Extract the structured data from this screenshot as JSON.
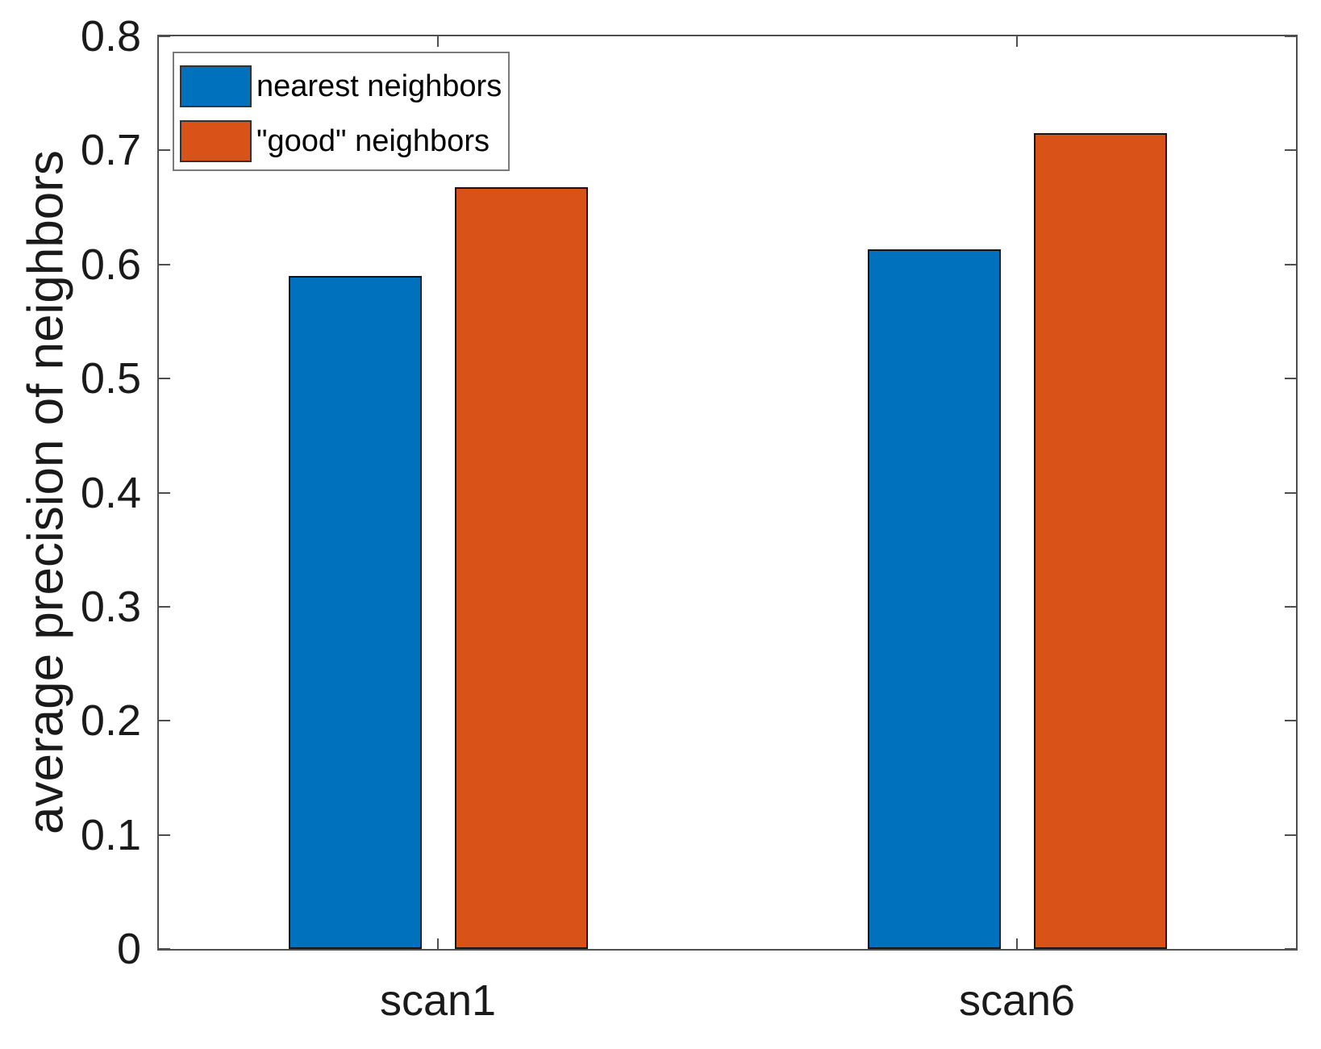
{
  "chart_data": {
    "type": "bar",
    "title": "",
    "categories": [
      "scan1",
      "scan6"
    ],
    "series": [
      {
        "name": "nearest neighbors",
        "color": "#0072BD",
        "values": [
          0.59,
          0.613
        ]
      },
      {
        "name": "\"good\" neighbors",
        "color": "#D95319",
        "values": [
          0.668,
          0.715
        ]
      }
    ],
    "xlabel": "",
    "ylabel": "average precision of neighbors",
    "ylim": [
      0,
      0.8
    ],
    "yticks": [
      0,
      0.1,
      0.2,
      0.3,
      0.4,
      0.5,
      0.6,
      0.7,
      0.8
    ],
    "ytick_labels": [
      "0",
      "0.1",
      "0.2",
      "0.3",
      "0.4",
      "0.5",
      "0.6",
      "0.7",
      "0.8"
    ],
    "grid": false,
    "legend_position": "top-left",
    "tick_direction": "in"
  },
  "colors": {
    "background": "#ffffff",
    "axis": "#4f4f4f",
    "bar_edge": "#151515",
    "text": "#1a1a1a",
    "legend_border": "#7a7a7a"
  }
}
